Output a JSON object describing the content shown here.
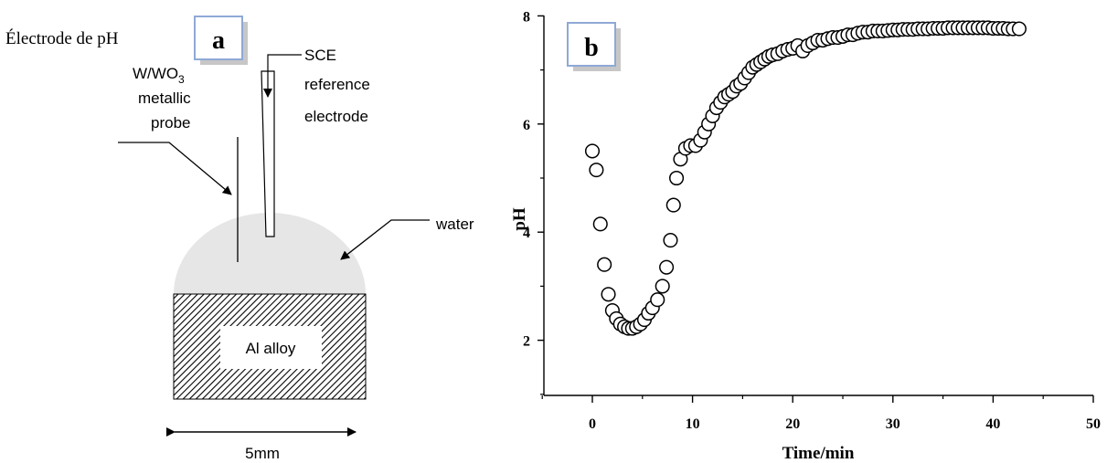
{
  "caption": "Électrode de pH",
  "panel_a": {
    "letter": "a",
    "probe_label": [
      "W/WO",
      "3",
      "metallic",
      "probe"
    ],
    "reference_label": [
      "SCE",
      "reference",
      "electrode"
    ],
    "water_label": "water",
    "alloy_label": "Al alloy",
    "scale_label": "5mm",
    "colors": {
      "droplet": "#e6e6e6",
      "hatch": "#000000"
    }
  },
  "panel_b": {
    "letter": "b"
  },
  "chart_data": {
    "type": "scatter",
    "xlabel": "Time/min",
    "ylabel": "pH",
    "xlim": [
      -5,
      50
    ],
    "ylim": [
      1,
      8
    ],
    "xticks": [
      0,
      10,
      20,
      30,
      40,
      50
    ],
    "yticks": [
      2,
      4,
      6,
      8
    ],
    "marker": "open-circle",
    "grid": false,
    "x": [
      0.0,
      0.4,
      0.8,
      1.2,
      1.6,
      2.0,
      2.4,
      2.8,
      3.2,
      3.6,
      4.0,
      4.4,
      4.8,
      5.2,
      5.6,
      6.0,
      6.5,
      7.0,
      7.4,
      7.8,
      8.1,
      8.4,
      8.8,
      9.3,
      9.8,
      10.3,
      10.8,
      11.2,
      11.6,
      12.0,
      12.4,
      12.8,
      13.2,
      13.6,
      14.0,
      14.4,
      14.8,
      15.2,
      15.6,
      16.0,
      16.4,
      16.8,
      17.2,
      17.6,
      18.0,
      18.5,
      19.0,
      19.5,
      20.0,
      20.5,
      21.0,
      21.5,
      22.0,
      22.5,
      23.0,
      23.5,
      24.0,
      24.5,
      25.0,
      25.5,
      26.0,
      26.5,
      27.0,
      27.5,
      28.0,
      28.5,
      29.0,
      29.5,
      30.0,
      30.5,
      31.0,
      31.5,
      32.0,
      32.5,
      33.0,
      33.5,
      34.0,
      34.5,
      35.0,
      35.5,
      36.0,
      36.5,
      37.0,
      37.5,
      38.0,
      38.5,
      39.0,
      39.5,
      40.0,
      40.5,
      41.0,
      41.5,
      42.0,
      42.6
    ],
    "y": [
      5.5,
      5.15,
      4.15,
      3.4,
      2.85,
      2.55,
      2.4,
      2.3,
      2.25,
      2.22,
      2.22,
      2.25,
      2.3,
      2.38,
      2.5,
      2.6,
      2.75,
      3.0,
      3.35,
      3.85,
      4.5,
      5.0,
      5.35,
      5.55,
      5.6,
      5.6,
      5.7,
      5.85,
      6.0,
      6.15,
      6.3,
      6.4,
      6.5,
      6.55,
      6.6,
      6.7,
      6.75,
      6.85,
      6.95,
      7.05,
      7.1,
      7.15,
      7.2,
      7.25,
      7.28,
      7.3,
      7.35,
      7.38,
      7.4,
      7.45,
      7.35,
      7.45,
      7.5,
      7.55,
      7.55,
      7.58,
      7.6,
      7.6,
      7.62,
      7.65,
      7.65,
      7.68,
      7.7,
      7.7,
      7.72,
      7.72,
      7.72,
      7.73,
      7.74,
      7.74,
      7.75,
      7.75,
      7.75,
      7.76,
      7.76,
      7.76,
      7.77,
      7.77,
      7.77,
      7.78,
      7.78,
      7.78,
      7.78,
      7.78,
      7.78,
      7.78,
      7.78,
      7.78,
      7.77,
      7.77,
      7.77,
      7.76,
      7.76,
      7.76
    ]
  }
}
